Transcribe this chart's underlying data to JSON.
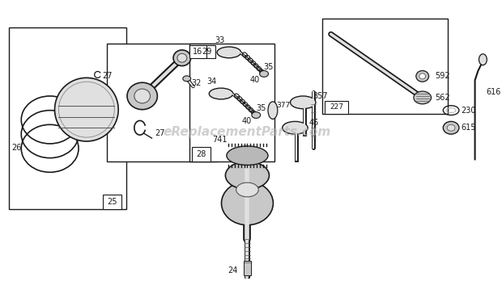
{
  "bg_color": "#ffffff",
  "watermark": "eReplacementParts.com",
  "watermark_color": "#b0b0b0",
  "watermark_fontsize": 11,
  "fig_width": 6.2,
  "fig_height": 3.48,
  "dpi": 100,
  "line_color": "#1a1a1a",
  "gray_fill": "#c8c8c8",
  "light_gray": "#e0e0e0"
}
